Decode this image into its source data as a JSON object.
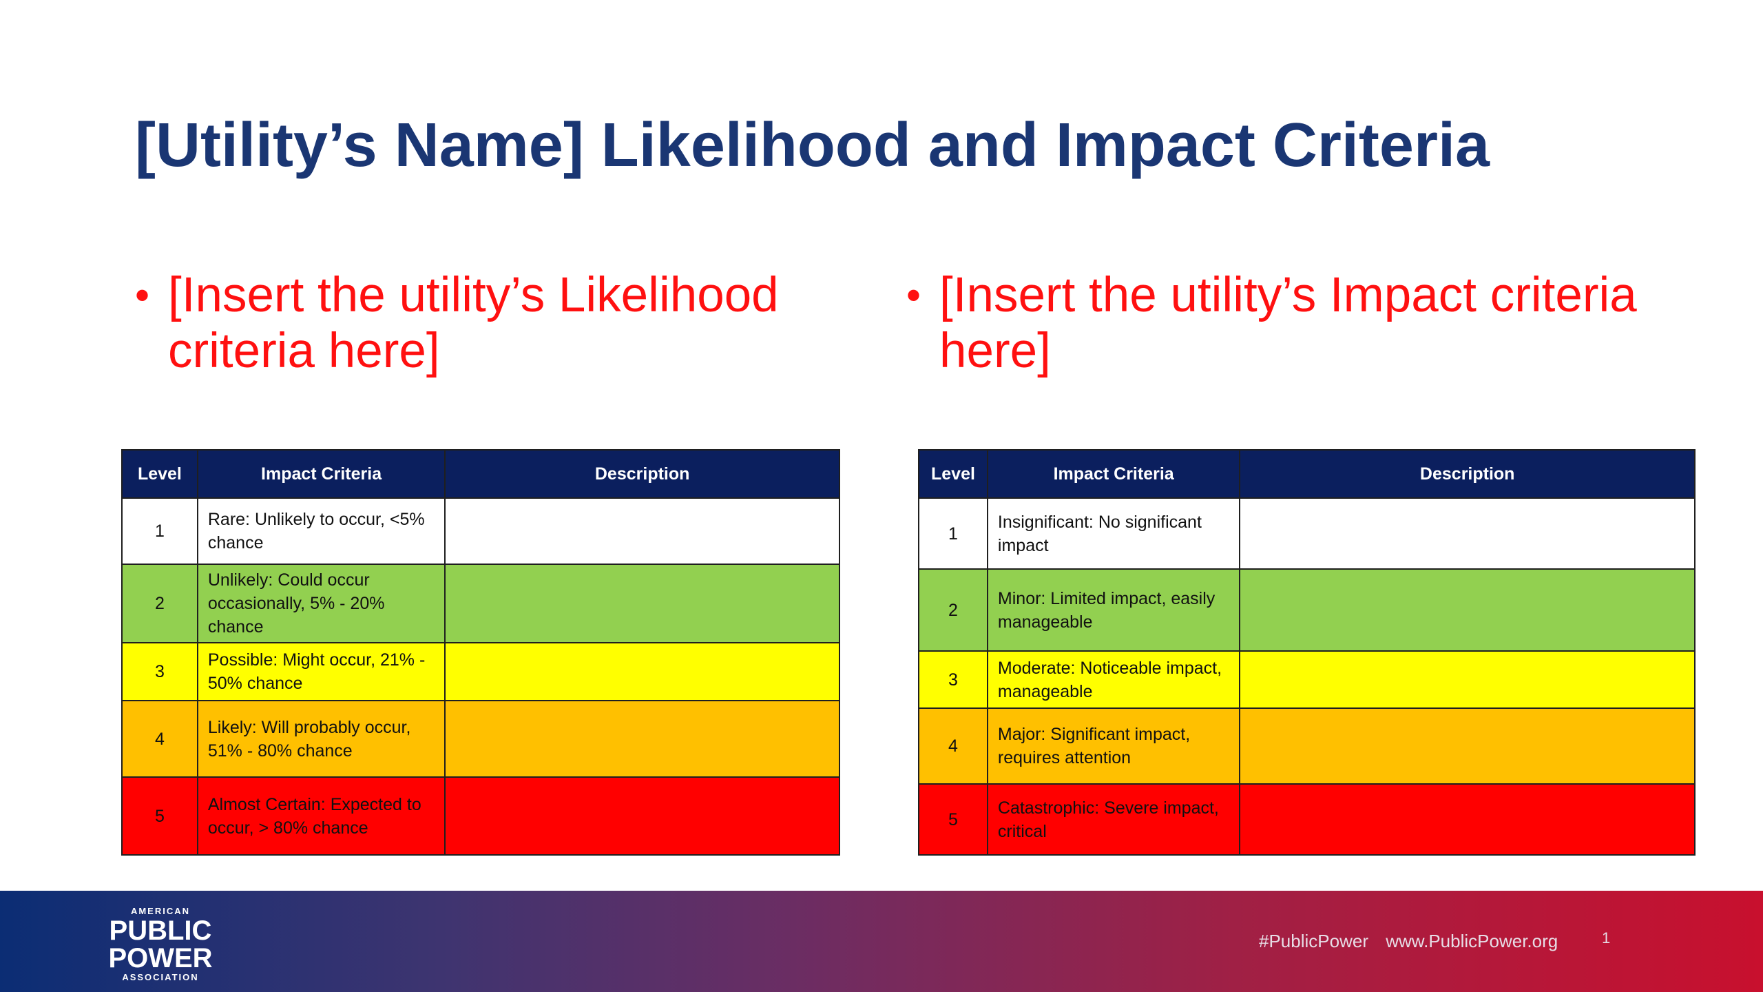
{
  "slide": {
    "title": "[Utility’s Name] Likelihood and Impact Criteria",
    "left_bullet": "[Insert the utility’s Likelihood criteria here]",
    "right_bullet": "[Insert the utility’s Impact criteria here]",
    "bullet_symbol": "•"
  },
  "likelihood_table": {
    "headers": [
      "Level",
      "Impact Criteria",
      "Description"
    ],
    "rows": [
      {
        "level": "1",
        "criteria": "Rare: Unlikely to occur, <5% chance",
        "description": "",
        "color": "#ffffff"
      },
      {
        "level": "2",
        "criteria": "Unlikely: Could occur occasionally, 5% - 20% chance",
        "description": "",
        "color": "#92d050"
      },
      {
        "level": "3",
        "criteria": "Possible: Might occur, 21% - 50% chance",
        "description": "",
        "color": "#ffff00"
      },
      {
        "level": "4",
        "criteria": "Likely: Will probably occur, 51% - 80% chance",
        "description": "",
        "color": "#ffc000"
      },
      {
        "level": "5",
        "criteria": "Almost Certain: Expected to occur, > 80% chance",
        "description": "",
        "color": "#ff0000"
      }
    ]
  },
  "impact_table": {
    "headers": [
      "Level",
      "Impact Criteria",
      "Description"
    ],
    "rows": [
      {
        "level": "1",
        "criteria": "Insignificant: No significant impact",
        "description": "",
        "color": "#ffffff"
      },
      {
        "level": "2",
        "criteria": "Minor: Limited impact, easily manageable",
        "description": "",
        "color": "#92d050"
      },
      {
        "level": "3",
        "criteria": "Moderate: Noticeable impact, manageable",
        "description": "",
        "color": "#ffff00"
      },
      {
        "level": "4",
        "criteria": "Major: Significant impact, requires attention",
        "description": "",
        "color": "#ffc000"
      },
      {
        "level": "5",
        "criteria": "Catastrophic: Severe impact, critical",
        "description": "",
        "color": "#ff0000"
      }
    ]
  },
  "footer": {
    "logo_top": "AMERICAN",
    "logo_line1": "PUBLIC",
    "logo_line2": "POWER",
    "logo_bottom": "ASSOCIATION",
    "hashtag": "#PublicPower",
    "website": "www.PublicPower.org",
    "page_number": "1"
  },
  "colors": {
    "title": "#1a3673",
    "bullet_text": "#ff1010",
    "table_header_bg": "#0b1f5e",
    "level_2_green": "#92d050",
    "level_3_yellow": "#ffff00",
    "level_4_orange": "#ffc000",
    "level_5_red": "#ff0000"
  }
}
